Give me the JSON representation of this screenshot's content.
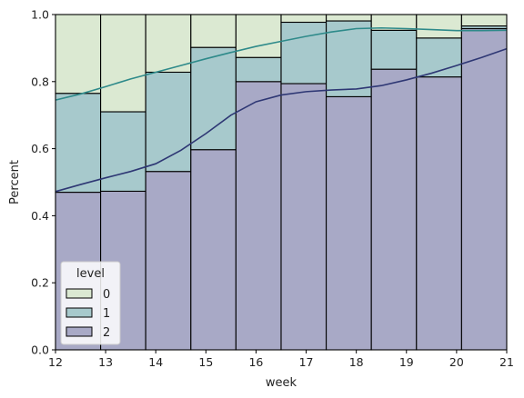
{
  "chart_data": {
    "type": "bar",
    "stacked": "fill",
    "xlabel": "week",
    "ylabel": "Percent",
    "xlim": [
      12,
      21
    ],
    "ylim": [
      0,
      1
    ],
    "xticks": [
      "12",
      "13",
      "14",
      "15",
      "16",
      "17",
      "18",
      "19",
      "20",
      "21"
    ],
    "yticks": [
      "0.0",
      "0.2",
      "0.4",
      "0.6",
      "0.8",
      "1.0"
    ],
    "bins": [
      {
        "start": 12.0,
        "end": 12.9,
        "cum2": 0.47,
        "cum1": 0.765
      },
      {
        "start": 12.9,
        "end": 13.8,
        "cum2": 0.473,
        "cum1": 0.71
      },
      {
        "start": 13.8,
        "end": 14.7,
        "cum2": 0.532,
        "cum1": 0.828
      },
      {
        "start": 14.7,
        "end": 15.6,
        "cum2": 0.597,
        "cum1": 0.902
      },
      {
        "start": 15.6,
        "end": 16.5,
        "cum2": 0.8,
        "cum1": 0.872
      },
      {
        "start": 16.5,
        "end": 17.4,
        "cum2": 0.794,
        "cum1": 0.977
      },
      {
        "start": 17.4,
        "end": 18.3,
        "cum2": 0.755,
        "cum1": 0.981
      },
      {
        "start": 18.3,
        "end": 19.2,
        "cum2": 0.837,
        "cum1": 0.953
      },
      {
        "start": 19.2,
        "end": 20.1,
        "cum2": 0.814,
        "cum1": 0.93
      },
      {
        "start": 20.1,
        "end": 21.0,
        "cum2": 0.958,
        "cum1": 0.966
      }
    ],
    "kde": {
      "level2": [
        [
          12.0,
          0.472
        ],
        [
          12.5,
          0.493
        ],
        [
          13.0,
          0.513
        ],
        [
          13.5,
          0.532
        ],
        [
          14.0,
          0.555
        ],
        [
          14.5,
          0.595
        ],
        [
          15.0,
          0.645
        ],
        [
          15.5,
          0.7
        ],
        [
          16.0,
          0.74
        ],
        [
          16.5,
          0.76
        ],
        [
          17.0,
          0.77
        ],
        [
          17.5,
          0.775
        ],
        [
          18.0,
          0.778
        ],
        [
          18.5,
          0.788
        ],
        [
          19.0,
          0.805
        ],
        [
          19.5,
          0.825
        ],
        [
          20.0,
          0.848
        ],
        [
          20.5,
          0.872
        ],
        [
          21.0,
          0.898
        ]
      ],
      "level1": [
        [
          12.0,
          0.745
        ],
        [
          12.5,
          0.763
        ],
        [
          13.0,
          0.785
        ],
        [
          13.5,
          0.808
        ],
        [
          14.0,
          0.828
        ],
        [
          14.5,
          0.848
        ],
        [
          15.0,
          0.868
        ],
        [
          15.5,
          0.887
        ],
        [
          16.0,
          0.905
        ],
        [
          16.5,
          0.92
        ],
        [
          17.0,
          0.935
        ],
        [
          17.5,
          0.948
        ],
        [
          18.0,
          0.958
        ],
        [
          18.5,
          0.96
        ],
        [
          19.0,
          0.958
        ],
        [
          19.5,
          0.955
        ],
        [
          20.0,
          0.952
        ],
        [
          20.5,
          0.952
        ],
        [
          21.0,
          0.953
        ]
      ]
    },
    "legend": {
      "title": "level",
      "placement": "lower-left",
      "entries": [
        {
          "label": "0",
          "color": "#dbe9d2"
        },
        {
          "label": "1",
          "color": "#a7c9cc"
        },
        {
          "label": "2",
          "color": "#a8a9c6"
        }
      ]
    },
    "colors": {
      "level0_fill": "#dbe9d2",
      "level1_fill": "#a7c9cc",
      "level2_fill": "#a8a9c6",
      "kde_level1": "#2e8a8a",
      "kde_level2": "#2e3774",
      "edge": "#000000"
    }
  }
}
